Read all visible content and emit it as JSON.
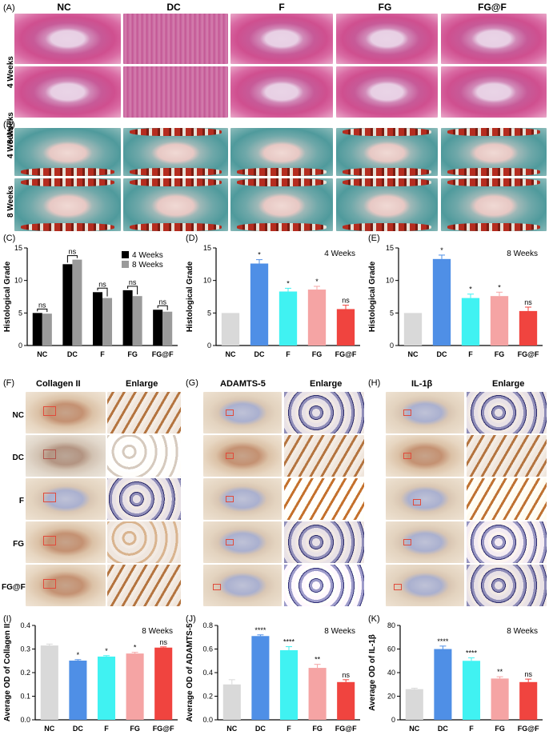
{
  "panel_labels": {
    "A": "(A)",
    "B": "(B)",
    "C": "(C)",
    "D": "(D)",
    "E": "(E)",
    "F": "(F)",
    "G": "(G)",
    "H": "(H)",
    "I": "(I)",
    "J": "(J)",
    "K": "(K)"
  },
  "groups": [
    "NC",
    "DC",
    "F",
    "FG",
    "FG@F"
  ],
  "timepoints": [
    "4 Weeks",
    "8 Weeks"
  ],
  "ihc_headers": {
    "F": [
      "Collagen II",
      "Enlarge"
    ],
    "G": [
      "ADAMTS-5",
      "Enlarge"
    ],
    "H": [
      "IL-1β",
      "Enlarge"
    ]
  },
  "colors": {
    "NC": "#d9d9d9",
    "DC": "#4f8fe6",
    "F": "#40f2f2",
    "FG": "#f5a4a4",
    "FG@F": "#f0443f",
    "week4": "#000000",
    "week8": "#9a9a9a",
    "star_red": "#e0303a"
  },
  "chart_data": [
    {
      "id": "C",
      "type": "bar",
      "ylabel": "Histological Grade",
      "ylim": [
        0,
        15
      ],
      "yticks": [
        0,
        5,
        10,
        15
      ],
      "categories": [
        "NC",
        "DC",
        "F",
        "FG",
        "FG@F"
      ],
      "legend": "top-right",
      "series": [
        {
          "name": "4 Weeks",
          "values": [
            5.0,
            12.5,
            8.2,
            8.5,
            5.5
          ]
        },
        {
          "name": "8 Weeks",
          "values": [
            4.9,
            13.2,
            7.3,
            7.6,
            5.2
          ]
        }
      ],
      "brackets": [
        "ns",
        "ns",
        "ns",
        "ns",
        "ns"
      ]
    },
    {
      "id": "D",
      "type": "bar",
      "ylabel": "Histological Grade",
      "ylim": [
        0,
        15
      ],
      "yticks": [
        0,
        5,
        10,
        15
      ],
      "annotation": "4 Weeks",
      "categories": [
        "NC",
        "DC",
        "F",
        "FG",
        "FG@F"
      ],
      "values": [
        5.0,
        12.6,
        8.3,
        8.6,
        5.6
      ],
      "errors": [
        0.0,
        0.6,
        0.5,
        0.5,
        0.6
      ],
      "marks": [
        "",
        "*",
        "*",
        "*",
        "ns"
      ]
    },
    {
      "id": "E",
      "type": "bar",
      "ylabel": "Histological Grade",
      "ylim": [
        0,
        15
      ],
      "yticks": [
        0,
        5,
        10,
        15
      ],
      "annotation": "8 Weeks",
      "categories": [
        "NC",
        "DC",
        "F",
        "FG",
        "FG@F"
      ],
      "values": [
        5.0,
        13.3,
        7.3,
        7.6,
        5.3
      ],
      "errors": [
        0.0,
        0.6,
        0.6,
        0.6,
        0.6
      ],
      "marks": [
        "",
        "*",
        "*",
        "*",
        "ns"
      ]
    },
    {
      "id": "I",
      "type": "bar",
      "ylabel": "Average OD of Collagen II",
      "ylim": [
        0,
        0.4
      ],
      "yticks": [
        0,
        0.1,
        0.2,
        0.3,
        0.4
      ],
      "ytick_labels": [
        "0.0",
        "0.1",
        "0.2",
        "0.3",
        "0.4"
      ],
      "annotation": "8 Weeks",
      "categories": [
        "NC",
        "DC",
        "F",
        "FG",
        "FG@F"
      ],
      "values": [
        0.315,
        0.251,
        0.268,
        0.281,
        0.306
      ],
      "errors": [
        0.006,
        0.004,
        0.004,
        0.005,
        0.003
      ],
      "marks": [
        "",
        "*",
        "*",
        "*",
        "ns"
      ]
    },
    {
      "id": "J",
      "type": "bar",
      "ylabel": "Average OD of ADAMTS-5",
      "ylim": [
        0,
        0.8
      ],
      "yticks": [
        0,
        0.2,
        0.4,
        0.6,
        0.8
      ],
      "ytick_labels": [
        "0.0",
        "0.2",
        "0.4",
        "0.6",
        "0.8"
      ],
      "annotation": "8 Weeks",
      "categories": [
        "NC",
        "DC",
        "F",
        "FG",
        "FG@F"
      ],
      "values": [
        0.3,
        0.71,
        0.59,
        0.44,
        0.32
      ],
      "errors": [
        0.04,
        0.01,
        0.03,
        0.03,
        0.02
      ],
      "marks": [
        "",
        "****",
        "****",
        "**",
        "ns"
      ]
    },
    {
      "id": "K",
      "type": "bar",
      "ylabel": "Average OD of IL-1β",
      "ylim": [
        0,
        80
      ],
      "yticks": [
        0,
        20,
        40,
        60,
        80
      ],
      "ytick_labels": [
        "0",
        "20",
        "40",
        "60",
        "80"
      ],
      "annotation": "8 Weeks",
      "categories": [
        "NC",
        "DC",
        "F",
        "FG",
        "FG@F"
      ],
      "values": [
        26,
        60,
        50,
        35,
        32
      ],
      "errors": [
        0.8,
        2.5,
        2.5,
        1.5,
        2.5
      ],
      "marks": [
        "",
        "****",
        "****",
        "**",
        "ns"
      ]
    }
  ]
}
